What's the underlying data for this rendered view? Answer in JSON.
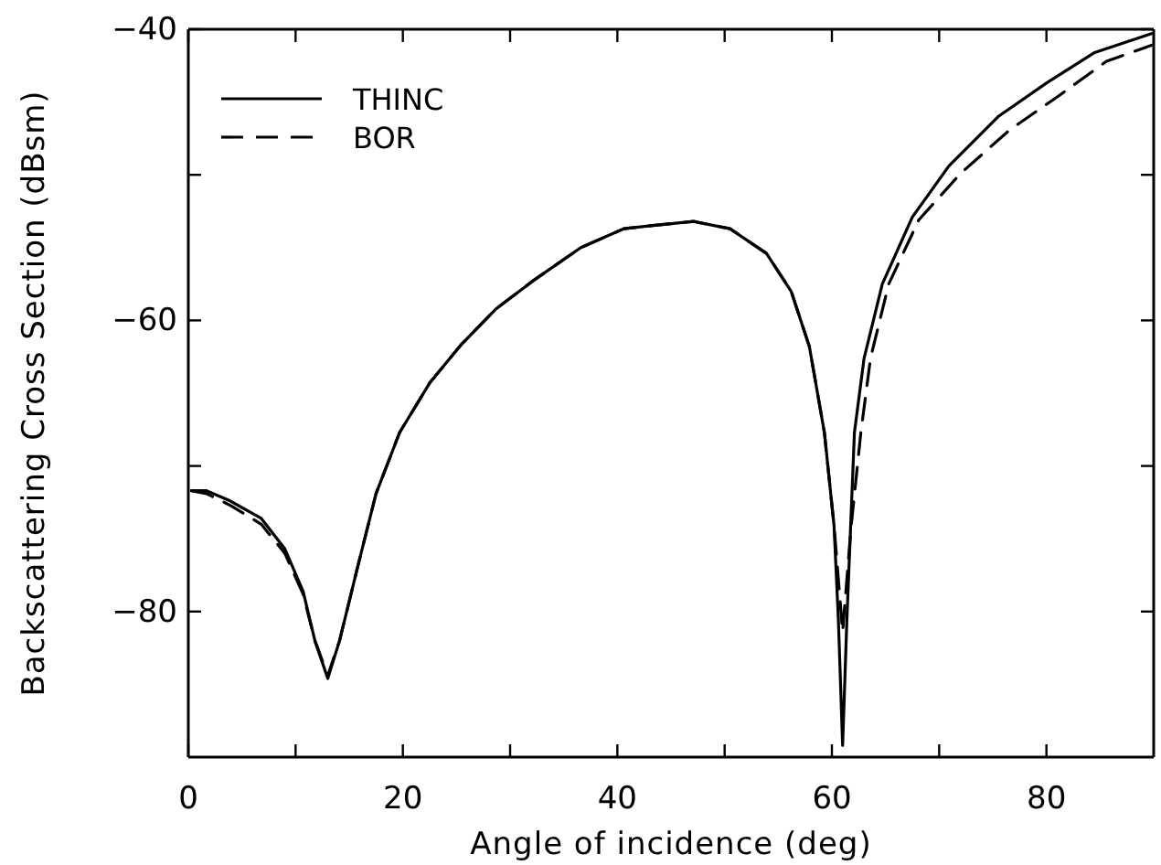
{
  "chart_data": {
    "type": "line",
    "xlabel": "Angle of incidence (deg)",
    "ylabel": "Backscattering Cross Section (dBsm)",
    "xlim": [
      0,
      90
    ],
    "ylim": [
      -90,
      -40
    ],
    "xticks": [
      0,
      {
        "value": 10,
        "label": null
      },
      20,
      {
        "value": 30,
        "label": null
      },
      40,
      {
        "value": 50,
        "label": null
      },
      60,
      {
        "value": 70,
        "label": null
      },
      80
    ],
    "yticks": [
      {
        "value": -40,
        "label": "−40"
      },
      {
        "value": -50,
        "label": null
      },
      {
        "value": -60,
        "label": "−60"
      },
      {
        "value": -70,
        "label": null
      },
      {
        "value": -80,
        "label": "−80"
      }
    ],
    "legend": "top left",
    "grid": false,
    "marker": "none",
    "series": [
      {
        "name": "THINC",
        "color": "#000000",
        "line_style": "solid",
        "x": [
          0.3,
          1.7,
          3.9,
          6.8,
          9.0,
          10.7,
          11.8,
          13.0,
          14.1,
          15.8,
          17.5,
          19.7,
          22.5,
          25.4,
          28.7,
          32.1,
          36.6,
          40.6,
          43.1,
          47.1,
          50.5,
          53.9,
          56.2,
          57.9,
          59.3,
          60.2,
          60.6,
          61.0,
          61.4,
          62.1,
          63.0,
          64.7,
          67.5,
          70.9,
          75.5,
          80.0,
          84.5,
          89.8
        ],
        "values": [
          -71.7,
          -71.7,
          -72.4,
          -73.6,
          -75.7,
          -78.6,
          -82.0,
          -84.6,
          -82.0,
          -76.9,
          -71.9,
          -67.7,
          -64.3,
          -61.7,
          -59.2,
          -57.3,
          -55.0,
          -53.7,
          -53.5,
          -53.2,
          -53.7,
          -55.4,
          -58.0,
          -61.8,
          -67.7,
          -74.1,
          -80.5,
          -89.2,
          -80.5,
          -67.7,
          -62.6,
          -57.5,
          -52.9,
          -49.4,
          -46.0,
          -43.7,
          -41.6,
          -40.3
        ]
      },
      {
        "name": "BOR",
        "color": "#000000",
        "line_style": "dashed",
        "x": [
          0.3,
          1.7,
          3.9,
          6.8,
          9.0,
          10.7,
          11.8,
          13.0,
          14.1,
          15.8,
          17.5,
          19.7,
          22.5,
          25.4,
          28.7,
          32.1,
          36.6,
          40.6,
          43.1,
          47.1,
          50.5,
          53.9,
          56.2,
          57.9,
          59.3,
          60.2,
          61.0,
          61.8,
          62.7,
          63.6,
          65.3,
          68.1,
          72.0,
          76.6,
          81.1,
          85.6,
          89.8
        ],
        "values": [
          -71.7,
          -71.9,
          -72.7,
          -74.0,
          -76.0,
          -78.8,
          -82.0,
          -84.4,
          -82.0,
          -76.9,
          -71.9,
          -67.7,
          -64.3,
          -61.7,
          -59.2,
          -57.3,
          -55.0,
          -53.7,
          -53.5,
          -53.2,
          -53.7,
          -55.4,
          -58.0,
          -61.8,
          -67.7,
          -74.1,
          -81.4,
          -74.1,
          -67.7,
          -62.6,
          -57.5,
          -53.1,
          -49.9,
          -46.9,
          -44.6,
          -42.2,
          -41.1
        ]
      }
    ]
  }
}
